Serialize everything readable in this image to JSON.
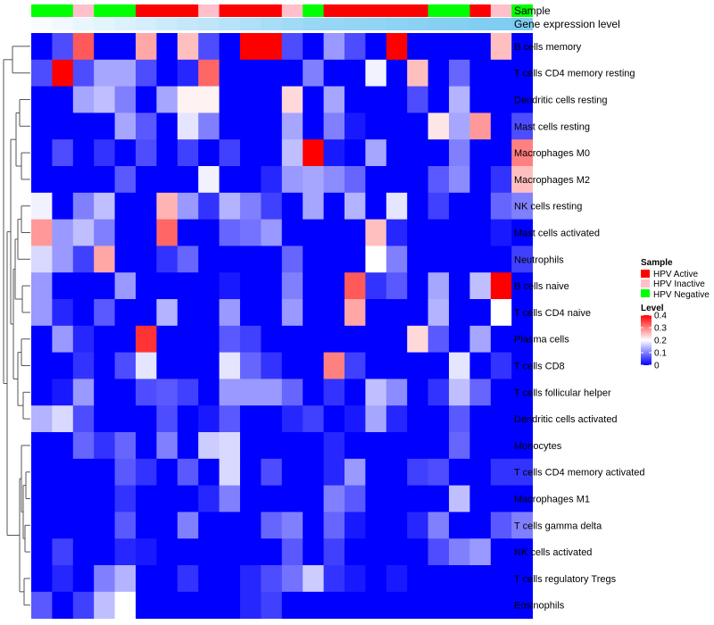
{
  "chart_data": {
    "type": "heatmap",
    "annotations": {
      "sample_track_label": "Sample",
      "expression_track_label": "Gene expression level",
      "sample_per_column": [
        "HPV Negative",
        "HPV Negative",
        "HPV Inactive",
        "HPV Negative",
        "HPV Negative",
        "HPV Active",
        "HPV Active",
        "HPV Active",
        "HPV Inactive",
        "HPV Active",
        "HPV Active",
        "HPV Active",
        "HPV Inactive",
        "HPV Negative",
        "HPV Active",
        "HPV Active",
        "HPV Active",
        "HPV Active",
        "HPV Active",
        "HPV Negative",
        "HPV Negative",
        "HPV Active",
        "HPV Inactive",
        "HPV Negative"
      ],
      "expression_per_column": [
        0.05,
        0.1,
        0.15,
        0.2,
        0.25,
        0.3,
        0.35,
        0.4,
        0.45,
        0.5,
        0.55,
        0.6,
        0.65,
        0.7,
        0.72,
        0.74,
        0.76,
        0.78,
        0.8,
        0.82,
        0.84,
        0.86,
        0.88,
        0.9
      ]
    },
    "rows": [
      "B cells memory",
      "T cells CD4 memory resting",
      "Dendritic cells resting",
      "Mast cells resting",
      "Macrophages M0",
      "Macrophages M2",
      "NK cells resting",
      "Mast cells activated",
      "Neutrophils",
      "B cells naive",
      "T cells CD4 naive",
      "Plasma cells",
      "T cells CD8",
      "T cells follicular helper",
      "Dendritic cells activated",
      "Monocytes",
      "T cells CD4 memory activated",
      "Macrophages M1",
      "T cells gamma delta",
      "NK cells activated",
      "T cells regulatory  Tregs",
      "Eosinophils"
    ],
    "values": [
      [
        0.0,
        0.06,
        0.33,
        0.0,
        0.0,
        0.27,
        0.0,
        0.25,
        0.06,
        0.0,
        0.4,
        0.4,
        0.06,
        0.0,
        0.12,
        0.06,
        0.0,
        0.4,
        0.0,
        0.0,
        0.0,
        0.0,
        0.25,
        0.0
      ],
      [
        0.06,
        0.4,
        0.06,
        0.13,
        0.13,
        0.06,
        0.0,
        0.03,
        0.32,
        0.0,
        0.0,
        0.0,
        0.0,
        0.1,
        0.0,
        0.0,
        0.19,
        0.0,
        0.25,
        0.0,
        0.08,
        0.0,
        0.0,
        0.0
      ],
      [
        0.0,
        0.0,
        0.13,
        0.15,
        0.1,
        0.0,
        0.13,
        0.21,
        0.21,
        0.0,
        0.0,
        0.0,
        0.23,
        0.0,
        0.13,
        0.0,
        0.0,
        0.0,
        0.06,
        0.0,
        0.14,
        0.0,
        0.0,
        0.0
      ],
      [
        0.0,
        0.0,
        0.0,
        0.0,
        0.13,
        0.07,
        0.0,
        0.18,
        0.1,
        0.0,
        0.0,
        0.0,
        0.13,
        0.0,
        0.1,
        0.02,
        0.0,
        0.0,
        0.0,
        0.22,
        0.13,
        0.28,
        0.0,
        0.06
      ],
      [
        0.0,
        0.06,
        0.0,
        0.04,
        0.0,
        0.06,
        0.0,
        0.05,
        0.0,
        0.05,
        0.0,
        0.0,
        0.15,
        0.4,
        0.02,
        0.0,
        0.13,
        0.0,
        0.0,
        0.0,
        0.1,
        0.0,
        0.0,
        0.3
      ],
      [
        0.0,
        0.0,
        0.0,
        0.0,
        0.07,
        0.0,
        0.0,
        0.0,
        0.19,
        0.0,
        0.0,
        0.03,
        0.12,
        0.13,
        0.11,
        0.08,
        0.0,
        0.0,
        0.0,
        0.07,
        0.11,
        0.0,
        0.04,
        0.25
      ],
      [
        0.19,
        0.0,
        0.1,
        0.15,
        0.0,
        0.0,
        0.26,
        0.12,
        0.04,
        0.14,
        0.1,
        0.05,
        0.0,
        0.13,
        0.0,
        0.14,
        0.0,
        0.18,
        0.0,
        0.05,
        0.0,
        0.0,
        0.08,
        0.1
      ],
      [
        0.28,
        0.12,
        0.15,
        0.1,
        0.0,
        0.0,
        0.32,
        0.0,
        0.0,
        0.08,
        0.09,
        0.12,
        0.0,
        0.0,
        0.0,
        0.0,
        0.25,
        0.03,
        0.0,
        0.0,
        0.0,
        0.0,
        0.02,
        0.0
      ],
      [
        0.17,
        0.12,
        0.05,
        0.27,
        0.0,
        0.0,
        0.04,
        0.08,
        0.0,
        0.0,
        0.0,
        0.0,
        0.08,
        0.0,
        0.0,
        0.0,
        0.2,
        0.1,
        0.0,
        0.0,
        0.0,
        0.0,
        0.0,
        0.05
      ],
      [
        0.12,
        0.0,
        0.0,
        0.0,
        0.12,
        0.0,
        0.0,
        0.0,
        0.0,
        0.02,
        0.0,
        0.0,
        0.1,
        0.0,
        0.0,
        0.33,
        0.04,
        0.07,
        0.0,
        0.13,
        0.0,
        0.15,
        0.4,
        0.0
      ],
      [
        0.12,
        0.03,
        0.0,
        0.07,
        0.0,
        0.0,
        0.14,
        0.0,
        0.0,
        0.12,
        0.0,
        0.0,
        0.12,
        0.0,
        0.0,
        0.27,
        0.0,
        0.0,
        0.0,
        0.14,
        0.0,
        0.0,
        0.2,
        0.0
      ],
      [
        0.0,
        0.12,
        0.03,
        0.0,
        0.0,
        0.36,
        0.0,
        0.0,
        0.0,
        0.07,
        0.05,
        0.0,
        0.0,
        0.0,
        0.0,
        0.0,
        0.0,
        0.0,
        0.23,
        0.07,
        0.0,
        0.13,
        0.0,
        0.0
      ],
      [
        0.0,
        0.0,
        0.04,
        0.0,
        0.06,
        0.18,
        0.0,
        0.0,
        0.0,
        0.18,
        0.08,
        0.04,
        0.0,
        0.0,
        0.3,
        0.05,
        0.0,
        0.0,
        0.0,
        0.0,
        0.18,
        0.0,
        0.04,
        0.0
      ],
      [
        0.0,
        0.02,
        0.12,
        0.0,
        0.0,
        0.06,
        0.07,
        0.05,
        0.0,
        0.12,
        0.12,
        0.12,
        0.08,
        0.0,
        0.04,
        0.0,
        0.15,
        0.11,
        0.0,
        0.04,
        0.15,
        0.08,
        0.0,
        0.0
      ],
      [
        0.14,
        0.17,
        0.06,
        0.0,
        0.0,
        0.0,
        0.06,
        0.0,
        0.02,
        0.07,
        0.0,
        0.0,
        0.03,
        0.05,
        0.0,
        0.02,
        0.13,
        0.03,
        0.0,
        0.0,
        0.07,
        0.0,
        0.0,
        0.0
      ],
      [
        0.0,
        0.0,
        0.08,
        0.04,
        0.08,
        0.0,
        0.1,
        0.0,
        0.16,
        0.17,
        0.0,
        0.0,
        0.0,
        0.0,
        0.03,
        0.0,
        0.0,
        0.0,
        0.0,
        0.0,
        0.08,
        0.0,
        0.0,
        0.0
      ],
      [
        0.0,
        0.0,
        0.0,
        0.0,
        0.07,
        0.04,
        0.0,
        0.07,
        0.0,
        0.17,
        0.0,
        0.06,
        0.0,
        0.0,
        0.03,
        0.12,
        0.0,
        0.0,
        0.05,
        0.06,
        0.0,
        0.0,
        0.04,
        0.04
      ],
      [
        0.0,
        0.0,
        0.0,
        0.0,
        0.04,
        0.0,
        0.0,
        0.0,
        0.03,
        0.1,
        0.0,
        0.0,
        0.0,
        0.0,
        0.1,
        0.07,
        0.0,
        0.0,
        0.0,
        0.0,
        0.15,
        0.0,
        0.0,
        0.0
      ],
      [
        0.0,
        0.0,
        0.0,
        0.0,
        0.07,
        0.0,
        0.0,
        0.1,
        0.0,
        0.0,
        0.0,
        0.08,
        0.1,
        0.0,
        0.08,
        0.02,
        0.0,
        0.0,
        0.03,
        0.1,
        0.0,
        0.0,
        0.07,
        0.1
      ],
      [
        0.0,
        0.05,
        0.0,
        0.0,
        0.03,
        0.02,
        0.0,
        0.0,
        0.0,
        0.0,
        0.0,
        0.0,
        0.07,
        0.0,
        0.05,
        0.0,
        0.0,
        0.0,
        0.0,
        0.06,
        0.1,
        0.12,
        0.0,
        0.0
      ],
      [
        0.0,
        0.03,
        0.0,
        0.1,
        0.14,
        0.0,
        0.0,
        0.04,
        0.0,
        0.0,
        0.03,
        0.06,
        0.09,
        0.16,
        0.04,
        0.02,
        0.0,
        0.02,
        0.0,
        0.0,
        0.0,
        0.0,
        0.0,
        0.0
      ],
      [
        0.07,
        0.0,
        0.05,
        0.15,
        0.2,
        0.0,
        0.0,
        0.0,
        0.0,
        0.0,
        0.03,
        0.05,
        0.0,
        0.0,
        0.0,
        0.0,
        0.0,
        0.0,
        0.0,
        0.0,
        0.0,
        0.0,
        0.0,
        0.0
      ]
    ],
    "color_scale": {
      "min": 0,
      "max": 0.4,
      "low": "#0000ff",
      "mid": "#ffffff",
      "high": "#ff0000",
      "mid_value": 0.2
    },
    "legend": {
      "sample_title": "Sample",
      "sample_entries": [
        {
          "label": "HPV Active",
          "color": "#ff0000"
        },
        {
          "label": "HPV Inactive",
          "color": "#ffc0cb"
        },
        {
          "label": "HPV Negative",
          "color": "#00ff00"
        }
      ],
      "level_title": "Level",
      "level_ticks": [
        "0.4",
        "0.3",
        "0.2",
        "0.1",
        "0"
      ],
      "level_tick_values": [
        0.4,
        0.3,
        0.2,
        0.1,
        0
      ]
    },
    "expression_gradient": {
      "low": "#ffffff",
      "high": "#6ec6f0"
    },
    "dendrogram_color": "#555555"
  }
}
